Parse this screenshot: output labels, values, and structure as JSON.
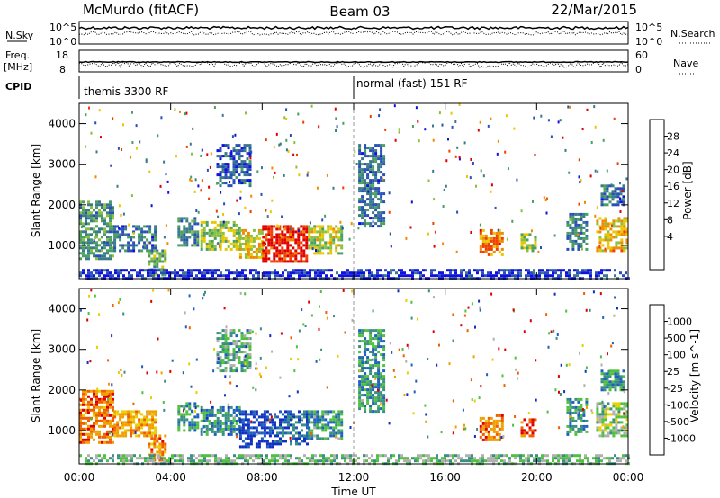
{
  "header": {
    "station": "McMurdo (fitACF)",
    "beam": "Beam 03",
    "date": "22/Mar/2015"
  },
  "top_panels": {
    "nsky_label": "N.Sky",
    "nsearch_label": "N.Search",
    "left_axis_ticks": [
      "10^5",
      "10^0"
    ],
    "right_axis_ticks": [
      "10^5",
      "10^0"
    ],
    "freq_label": "Freq.",
    "freq_unit": "[MHz]",
    "freq_ticks": [
      "18",
      "8"
    ],
    "nave_label": "Nave",
    "nave_ticks": [
      "60",
      "0"
    ],
    "cpid_label": "CPID",
    "cpid_segments": [
      {
        "start_hour": 0,
        "end_hour": 12,
        "label": "themis 3300 RF"
      },
      {
        "start_hour": 12,
        "end_hour": 24,
        "label": "normal (fast) 151 RF"
      }
    ]
  },
  "chart_data": [
    {
      "type": "heatmap",
      "name": "power-panel",
      "quantity": "Power",
      "ylabel": "Slant Range [km]",
      "colorbar_label": "Power [dB]",
      "colorbar_ticks": [
        "28",
        "24",
        "20",
        "16",
        "12",
        "8",
        "4"
      ],
      "colorbar_colors": [
        "#1010e0",
        "#2a4fb8",
        "#3a7a8a",
        "#4aa060",
        "#8ac040",
        "#e8c800",
        "#f08a00",
        "#f04000",
        "#e00000"
      ],
      "yticks": [
        "4000",
        "3000",
        "2000",
        "1000"
      ],
      "ylim": [
        180,
        4500
      ],
      "xlim": [
        0,
        24
      ],
      "regions": [
        {
          "t0": 0,
          "t1": 1.5,
          "r0": 700,
          "r1": 2100,
          "level": 0.35
        },
        {
          "t0": 1.5,
          "t1": 3.3,
          "r0": 900,
          "r1": 1500,
          "level": 0.25
        },
        {
          "t0": 3.0,
          "t1": 3.8,
          "r0": 300,
          "r1": 900,
          "level": 0.45
        },
        {
          "t0": 4.3,
          "t1": 5.2,
          "r0": 1000,
          "r1": 1700,
          "level": 0.3
        },
        {
          "t0": 5.3,
          "t1": 7.0,
          "r0": 900,
          "r1": 1600,
          "level": 0.5
        },
        {
          "t0": 7.0,
          "t1": 8.0,
          "r0": 700,
          "r1": 1400,
          "level": 0.6
        },
        {
          "t0": 8.0,
          "t1": 10.0,
          "r0": 600,
          "r1": 1500,
          "level": 0.9
        },
        {
          "t0": 10.0,
          "t1": 11.5,
          "r0": 800,
          "r1": 1500,
          "level": 0.55
        },
        {
          "t0": 6.0,
          "t1": 7.5,
          "r0": 2500,
          "r1": 3500,
          "level": 0.2
        },
        {
          "t0": 12.2,
          "t1": 13.3,
          "r0": 1500,
          "r1": 3500,
          "level": 0.25
        },
        {
          "t0": 17.5,
          "t1": 18.5,
          "r0": 750,
          "r1": 1400,
          "level": 0.75
        },
        {
          "t0": 19.3,
          "t1": 20.0,
          "r0": 900,
          "r1": 1300,
          "level": 0.5
        },
        {
          "t0": 21.3,
          "t1": 22.2,
          "r0": 900,
          "r1": 1800,
          "level": 0.3
        },
        {
          "t0": 22.6,
          "t1": 24.0,
          "r0": 900,
          "r1": 1700,
          "level": 0.65
        },
        {
          "t0": 22.8,
          "t1": 23.8,
          "r0": 2000,
          "r1": 2500,
          "level": 0.25
        },
        {
          "t0": 0,
          "t1": 24.0,
          "r0": 200,
          "r1": 420,
          "level": 0.1
        }
      ]
    },
    {
      "type": "heatmap",
      "name": "velocity-panel",
      "quantity": "Velocity",
      "ylabel": "Slant Range [km]",
      "colorbar_label": "Velocity [m s^-1]",
      "colorbar_ticks": [
        "1000",
        "500",
        "100",
        "25",
        "-25",
        "-100",
        "-500",
        "-1000"
      ],
      "colorbar_colors": [
        "#1030c0",
        "#2060c0",
        "#3a9080",
        "#50c040",
        "#b0b0b0",
        "#e8d000",
        "#f0a000",
        "#f06000",
        "#e00000"
      ],
      "yticks": [
        "4000",
        "3000",
        "2000",
        "1000"
      ],
      "ylim": [
        180,
        4500
      ],
      "xlim": [
        0,
        24
      ],
      "regions": [
        {
          "t0": 0,
          "t1": 1.5,
          "r0": 700,
          "r1": 2000,
          "level": 0.8
        },
        {
          "t0": 1.5,
          "t1": 3.3,
          "r0": 900,
          "r1": 1500,
          "level": 0.7
        },
        {
          "t0": 3.0,
          "t1": 3.8,
          "r0": 300,
          "r1": 900,
          "level": 0.75
        },
        {
          "t0": 4.3,
          "t1": 5.2,
          "r0": 1000,
          "r1": 1700,
          "level": 0.3
        },
        {
          "t0": 5.3,
          "t1": 7.0,
          "r0": 900,
          "r1": 1600,
          "level": 0.25
        },
        {
          "t0": 7.0,
          "t1": 8.5,
          "r0": 600,
          "r1": 1500,
          "level": 0.05
        },
        {
          "t0": 8.5,
          "t1": 10.0,
          "r0": 700,
          "r1": 1500,
          "level": 0.15
        },
        {
          "t0": 10.0,
          "t1": 11.5,
          "r0": 800,
          "r1": 1500,
          "level": 0.3
        },
        {
          "t0": 6.0,
          "t1": 7.5,
          "r0": 2500,
          "r1": 3500,
          "level": 0.35
        },
        {
          "t0": 12.2,
          "t1": 13.3,
          "r0": 1500,
          "r1": 3500,
          "level": 0.3
        },
        {
          "t0": 17.5,
          "t1": 18.5,
          "r0": 750,
          "r1": 1400,
          "level": 0.8
        },
        {
          "t0": 19.3,
          "t1": 20.0,
          "r0": 900,
          "r1": 1300,
          "level": 0.9
        },
        {
          "t0": 21.3,
          "t1": 22.2,
          "r0": 900,
          "r1": 1800,
          "level": 0.3
        },
        {
          "t0": 22.6,
          "t1": 24.0,
          "r0": 900,
          "r1": 1700,
          "level": 0.45
        },
        {
          "t0": 22.8,
          "t1": 23.8,
          "r0": 2000,
          "r1": 2500,
          "level": 0.3
        },
        {
          "t0": 0,
          "t1": 24.0,
          "r0": 200,
          "r1": 420,
          "level": 0.4
        }
      ]
    }
  ],
  "xaxis": {
    "ticks": [
      "00:00",
      "04:00",
      "08:00",
      "12:00",
      "16:00",
      "20:00",
      "00:00"
    ],
    "tick_hours": [
      0,
      4,
      8,
      12,
      16,
      20,
      24
    ],
    "label": "Time UT"
  }
}
